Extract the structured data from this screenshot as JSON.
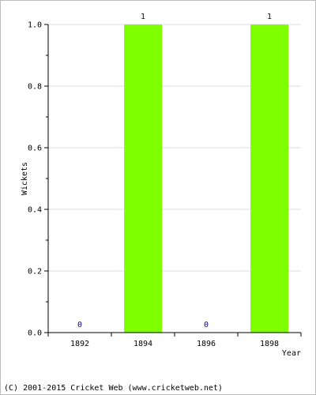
{
  "chart_data": {
    "type": "bar",
    "categories": [
      "1892",
      "1894",
      "1896",
      "1898"
    ],
    "values": [
      0,
      1,
      0,
      1
    ],
    "data_labels": [
      "0",
      "1",
      "0",
      "1"
    ],
    "title": "",
    "xlabel": "Year",
    "ylabel": "Wickets",
    "ylim": [
      0,
      1.0
    ],
    "yticks": [
      "0.0",
      "0.2",
      "0.4",
      "0.6",
      "0.8",
      "1.0"
    ],
    "grid": true,
    "bar_color": "#80ff00",
    "label_color": "#00007f",
    "grid_color": "#dddddd"
  },
  "footer": "(C) 2001-2015 Cricket Web (www.cricketweb.net)"
}
